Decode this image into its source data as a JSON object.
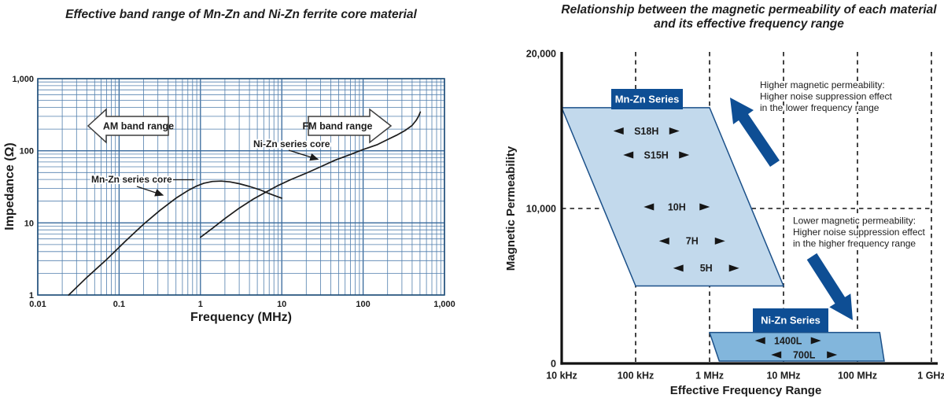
{
  "colors": {
    "grid_major": "#36689b",
    "grid_minor": "#517fad",
    "plot_border": "#1f4e79",
    "curve": "#1c1c1c",
    "accent_dark_blue": "#0e4e94",
    "mnzn_fill": "#c2d9ec",
    "nizn_fill": "#82b6dc",
    "region_border": "#1b5089",
    "text": "#1c1c1c"
  },
  "chart_data": [
    {
      "type": "line",
      "title": "Effective band range of Mn-Zn and Ni-Zn ferrite core material",
      "xlabel": "Frequency (MHz)",
      "ylabel": "Impedance (Ω)",
      "xscale": "log",
      "yscale": "log",
      "xlim": [
        0.01,
        1000
      ],
      "ylim": [
        1,
        1000
      ],
      "grid": true,
      "x_ticks": [
        "0.01",
        "0.1",
        "1",
        "10",
        "100",
        "1,000"
      ],
      "y_ticks": [
        "1",
        "10",
        "100",
        "1,000"
      ],
      "band_arrows": [
        {
          "label": "AM band range",
          "direction": "left"
        },
        {
          "label": "FM band range",
          "direction": "right"
        }
      ],
      "series": [
        {
          "name": "Mn-Zn series core",
          "points": [
            [
              0.024,
              1
            ],
            [
              0.04,
              1.75
            ],
            [
              0.07,
              3.1
            ],
            [
              0.12,
              5.6
            ],
            [
              0.2,
              9.6
            ],
            [
              0.32,
              15
            ],
            [
              0.5,
              22
            ],
            [
              0.7,
              28
            ],
            [
              0.9,
              32.5
            ],
            [
              1.1,
              35.5
            ],
            [
              1.4,
              37.5
            ],
            [
              1.8,
              38
            ],
            [
              2.3,
              37
            ],
            [
              3,
              35
            ],
            [
              4,
              32
            ],
            [
              5.5,
              28.5
            ],
            [
              7,
              25.5
            ],
            [
              8.5,
              23.5
            ],
            [
              10,
              22
            ]
          ]
        },
        {
          "name": "Ni-Zn series core",
          "points": [
            [
              1,
              6.3
            ],
            [
              1.4,
              8.4
            ],
            [
              2,
              11.5
            ],
            [
              3,
              16
            ],
            [
              4.5,
              21.5
            ],
            [
              6.5,
              27
            ],
            [
              9,
              33
            ],
            [
              13,
              40
            ],
            [
              20,
              49
            ],
            [
              30,
              60
            ],
            [
              45,
              74
            ],
            [
              70,
              89
            ],
            [
              100,
              104
            ],
            [
              150,
              122
            ],
            [
              200,
              143
            ],
            [
              260,
              165
            ],
            [
              330,
              192
            ],
            [
              400,
              225
            ],
            [
              450,
              265
            ],
            [
              480,
              300
            ],
            [
              505,
              345
            ]
          ]
        }
      ]
    },
    {
      "type": "area",
      "title_line1": "Relationship between the magnetic permeability of each material",
      "title_line2": "and its effective frequency range",
      "xlabel": "Effective Frequency Range",
      "ylabel": "Magnetic Permeability",
      "xscale": "log",
      "ylim": [
        0,
        20000
      ],
      "x_ticks": [
        {
          "label": "10 kHz",
          "hz": 10000
        },
        {
          "label": "100 kHz",
          "hz": 100000
        },
        {
          "label": "1 MHz",
          "hz": 1000000
        },
        {
          "label": "10 MHz",
          "hz": 10000000
        },
        {
          "label": "100 MHz",
          "hz": 100000000
        },
        {
          "label": "1 GHz",
          "hz": 1000000000
        }
      ],
      "y_ticks": [
        {
          "label": "20,000",
          "value": 20000
        },
        {
          "label": "10,000",
          "value": 10000
        },
        {
          "label": "0",
          "value": 0
        }
      ],
      "regions": [
        {
          "name": "Mn-Zn Series",
          "fill_key": "mnzn_fill",
          "corners": [
            [
              10000,
              16500
            ],
            [
              1000000,
              16500
            ],
            [
              10000000,
              5000
            ],
            [
              100000,
              5000
            ]
          ],
          "materials": [
            {
              "label": "S18H",
              "hz": 140000,
              "perm": 15000
            },
            {
              "label": "S15H",
              "hz": 190000,
              "perm": 13450
            },
            {
              "label": "10H",
              "hz": 360000,
              "perm": 10100
            },
            {
              "label": "7H",
              "hz": 580000,
              "perm": 7900
            },
            {
              "label": "5H",
              "hz": 900000,
              "perm": 6150
            }
          ]
        },
        {
          "name": "Ni-Zn Series",
          "fill_key": "nizn_fill",
          "corners": [
            [
              1000000,
              2000
            ],
            [
              200000000,
              2000
            ],
            [
              230000000,
              150
            ],
            [
              1350000,
              150
            ]
          ],
          "materials": [
            {
              "label": "1400L",
              "hz": 11500000,
              "perm": 1470
            },
            {
              "label": "700L",
              "hz": 19000000,
              "perm": 560
            }
          ]
        }
      ],
      "annotations": [
        {
          "lines": [
            "Higher magnetic permeability:",
            "Higher noise suppression effect",
            "in the lower frequency range"
          ]
        },
        {
          "lines": [
            "Lower magnetic permeability:",
            "Higher noise suppression effect",
            "in the higher frequency range"
          ]
        }
      ]
    }
  ]
}
